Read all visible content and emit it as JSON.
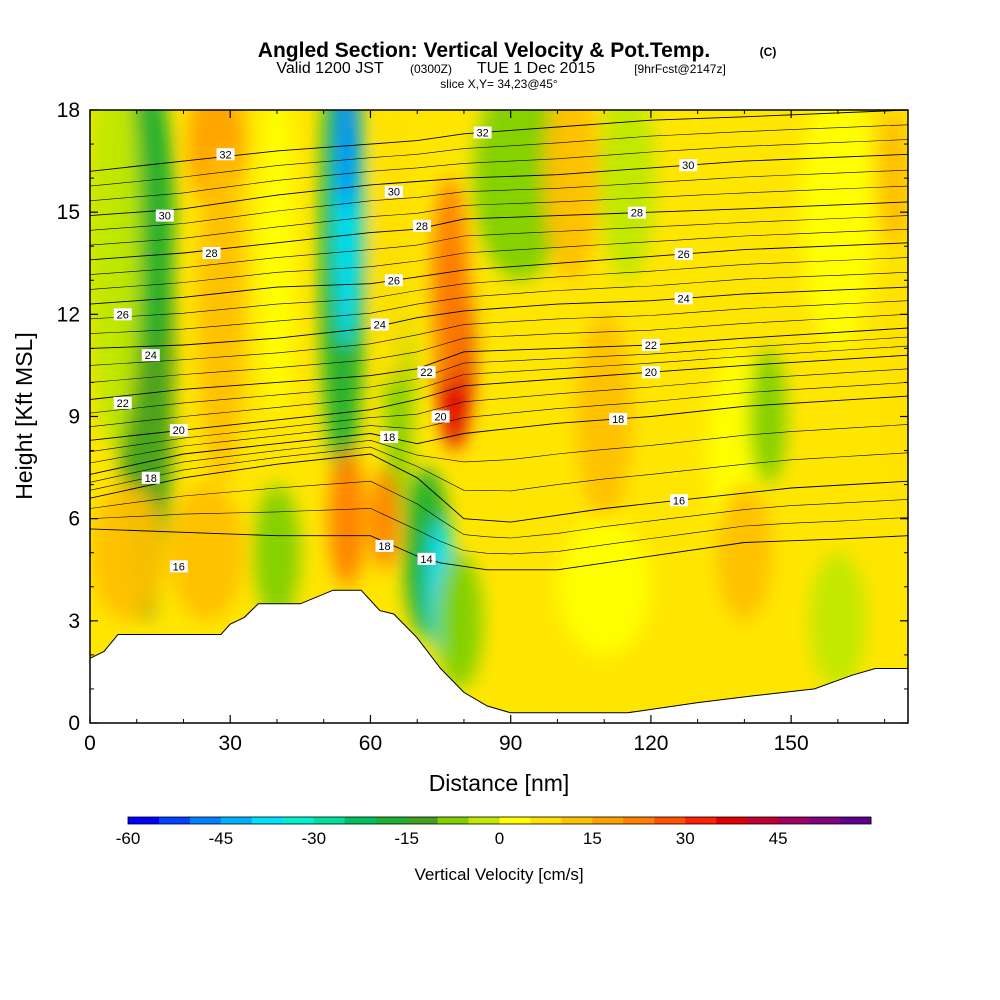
{
  "title": {
    "main": "Angled Section: Vertical Velocity & Pot.Temp.",
    "main_unit": "(C)",
    "valid_prefix": "Valid 1200 JST",
    "valid_utc": "(0300Z)",
    "valid_date": "TUE 1 Dec 2015",
    "forecast": "[9hrFcst@2147z]",
    "slice": "slice X,Y= 34,23@45°"
  },
  "chart_data": {
    "type": "heatmap",
    "description_fields": [
      "x",
      "y_levels",
      "terrain",
      "isentropes",
      "velocity_features"
    ],
    "xlabel": "Distance [nm]",
    "ylabel": "Height [Kft MSL]",
    "xlim": [
      0,
      175
    ],
    "ylim": [
      0,
      18
    ],
    "x_ticks": [
      0,
      30,
      60,
      90,
      120,
      150
    ],
    "y_ticks": [
      0,
      3,
      6,
      9,
      12,
      15,
      18
    ],
    "terrain": {
      "x": [
        0,
        3,
        6,
        12,
        20,
        28,
        30,
        33,
        36,
        45,
        52,
        58,
        60,
        62,
        65,
        70,
        75,
        80,
        85,
        90,
        100,
        115,
        130,
        142,
        155,
        163,
        168,
        175
      ],
      "y": [
        1.9,
        2.1,
        2.6,
        2.6,
        2.6,
        2.6,
        2.9,
        3.1,
        3.5,
        3.5,
        3.9,
        3.9,
        3.6,
        3.3,
        3.2,
        2.5,
        1.6,
        0.9,
        0.5,
        0.3,
        0.3,
        0.3,
        0.6,
        0.8,
        1.0,
        1.4,
        1.6,
        1.6
      ]
    },
    "isentropes": [
      {
        "theta": 14,
        "x": [
          0,
          20,
          40,
          60,
          70,
          75,
          85,
          100,
          120,
          140,
          160,
          175
        ],
        "y": [
          5.7,
          5.6,
          5.5,
          5.5,
          4.9,
          4.7,
          4.5,
          4.5,
          4.9,
          5.3,
          5.4,
          5.5
        ],
        "label_x": 72
      },
      {
        "theta": 16,
        "x": [
          0,
          20,
          40,
          60,
          70,
          80,
          90,
          110,
          130,
          150,
          175
        ],
        "y": [
          6.6,
          7.2,
          7.6,
          7.9,
          7.2,
          6.0,
          5.9,
          6.3,
          6.6,
          6.9,
          7.1
        ],
        "label_x": 126
      },
      {
        "theta": 18,
        "x": [
          0,
          20,
          40,
          60,
          70,
          80,
          100,
          120,
          140,
          175
        ],
        "y": [
          7.3,
          7.9,
          8.2,
          8.5,
          8.2,
          8.5,
          8.8,
          9.0,
          9.3,
          9.6
        ],
        "label_x": 113
      },
      {
        "theta": 20,
        "x": [
          0,
          20,
          40,
          60,
          70,
          80,
          100,
          120,
          140,
          175
        ],
        "y": [
          8.3,
          8.6,
          8.9,
          9.2,
          9.5,
          9.9,
          10.1,
          10.3,
          10.5,
          10.8
        ],
        "label_x": 120
      },
      {
        "theta": 22,
        "x": [
          0,
          20,
          40,
          60,
          70,
          80,
          100,
          120,
          140,
          175
        ],
        "y": [
          9.5,
          9.8,
          10.0,
          10.2,
          10.4,
          10.9,
          11.0,
          11.1,
          11.3,
          11.6
        ],
        "label_x": 120
      },
      {
        "theta": 24,
        "x": [
          0,
          20,
          40,
          60,
          70,
          80,
          100,
          120,
          140,
          175
        ],
        "y": [
          11.0,
          11.1,
          11.3,
          11.6,
          11.9,
          12.1,
          12.3,
          12.4,
          12.6,
          12.8
        ],
        "label_x": 127
      },
      {
        "theta": 26,
        "x": [
          0,
          20,
          40,
          60,
          70,
          80,
          100,
          120,
          140,
          175
        ],
        "y": [
          12.3,
          12.5,
          12.8,
          12.9,
          13.1,
          13.3,
          13.5,
          13.7,
          13.9,
          14.1
        ],
        "label_x": 127
      },
      {
        "theta": 28,
        "x": [
          0,
          20,
          40,
          60,
          70,
          80,
          100,
          120,
          140,
          175
        ],
        "y": [
          13.6,
          13.8,
          14.1,
          14.4,
          14.5,
          14.8,
          14.9,
          15.0,
          15.1,
          15.3
        ],
        "label_x": 117
      },
      {
        "theta": 30,
        "x": [
          0,
          20,
          40,
          60,
          70,
          80,
          100,
          120,
          140,
          175
        ],
        "y": [
          14.9,
          15.1,
          15.5,
          15.8,
          15.9,
          16.0,
          16.1,
          16.3,
          16.5,
          16.7
        ],
        "label_x": 128
      },
      {
        "theta": 32,
        "x": [
          0,
          20,
          40,
          60,
          70,
          80,
          100,
          120,
          140,
          175
        ],
        "y": [
          16.2,
          16.5,
          16.8,
          17.0,
          17.1,
          17.3,
          17.5,
          17.7,
          17.8,
          18.0
        ],
        "label_x": 84
      }
    ],
    "left_isentrope_labels": [
      {
        "theta": 16,
        "x": 19,
        "y": 4.6
      },
      {
        "theta": 18,
        "x": 13,
        "y": 7.2
      },
      {
        "theta": 20,
        "x": 19,
        "y": 8.6
      },
      {
        "theta": 22,
        "x": 7,
        "y": 9.4
      },
      {
        "theta": 24,
        "x": 13,
        "y": 10.8
      },
      {
        "theta": 26,
        "x": 7,
        "y": 12.0
      },
      {
        "theta": 28,
        "x": 26,
        "y": 13.8
      },
      {
        "theta": 30,
        "x": 16,
        "y": 14.9
      },
      {
        "theta": 32,
        "x": 29,
        "y": 16.7
      },
      {
        "theta": 30,
        "x": 65,
        "y": 15.6
      },
      {
        "theta": 28,
        "x": 71,
        "y": 14.6
      },
      {
        "theta": 26,
        "x": 65,
        "y": 13.0
      },
      {
        "theta": 24,
        "x": 62,
        "y": 11.7
      },
      {
        "theta": 22,
        "x": 72,
        "y": 10.3
      },
      {
        "theta": 20,
        "x": 75,
        "y": 9.0
      },
      {
        "theta": 18,
        "x": 64,
        "y": 8.4
      },
      {
        "theta": 18,
        "x": 63,
        "y": 5.2
      }
    ],
    "velocity_features": [
      {
        "x": 12,
        "y": 11,
        "rx": 6,
        "ry": 8,
        "w": -15
      },
      {
        "x": 13,
        "y": 15,
        "rx": 5,
        "ry": 4,
        "w": -20
      },
      {
        "x": 5,
        "y": 14,
        "rx": 6,
        "ry": 6,
        "w": -5
      },
      {
        "x": 27,
        "y": 17,
        "rx": 6,
        "ry": 2,
        "w": 18
      },
      {
        "x": 28,
        "y": 12,
        "rx": 5,
        "ry": 5,
        "w": 10
      },
      {
        "x": 40,
        "y": 14,
        "rx": 4,
        "ry": 5,
        "w": 0
      },
      {
        "x": 54,
        "y": 14,
        "rx": 5,
        "ry": 7,
        "w": -20
      },
      {
        "x": 55,
        "y": 15,
        "rx": 3,
        "ry": 4,
        "w": -38
      },
      {
        "x": 55,
        "y": 17,
        "rx": 2,
        "ry": 2,
        "w": -50
      },
      {
        "x": 66,
        "y": 10,
        "rx": 3,
        "ry": 4,
        "w": -10
      },
      {
        "x": 65,
        "y": 14,
        "rx": 4,
        "ry": 4,
        "w": 8
      },
      {
        "x": 78,
        "y": 11,
        "rx": 4,
        "ry": 3,
        "w": 35
      },
      {
        "x": 77,
        "y": 13,
        "rx": 4,
        "ry": 3,
        "w": 22
      },
      {
        "x": 92,
        "y": 16,
        "rx": 10,
        "ry": 3,
        "w": -8
      },
      {
        "x": 103,
        "y": 16,
        "rx": 6,
        "ry": 3,
        "w": 10
      },
      {
        "x": 115,
        "y": 16,
        "rx": 6,
        "ry": 3,
        "w": -5
      },
      {
        "x": 160,
        "y": 15,
        "rx": 8,
        "ry": 4,
        "w": 2
      },
      {
        "x": 172,
        "y": 16,
        "rx": 4,
        "ry": 2,
        "w": 12
      },
      {
        "x": 110,
        "y": 9,
        "rx": 6,
        "ry": 3,
        "w": 10
      },
      {
        "x": 138,
        "y": 8,
        "rx": 6,
        "ry": 3,
        "w": 2
      },
      {
        "x": 145,
        "y": 9,
        "rx": 4,
        "ry": 2,
        "w": -6
      },
      {
        "x": 8,
        "y": 5,
        "rx": 8,
        "ry": 2,
        "w": 10
      },
      {
        "x": 25,
        "y": 5,
        "rx": 8,
        "ry": 2,
        "w": 10
      },
      {
        "x": 40,
        "y": 5,
        "rx": 5,
        "ry": 2,
        "w": -8
      },
      {
        "x": 55,
        "y": 6,
        "rx": 4,
        "ry": 2,
        "w": 22
      },
      {
        "x": 63,
        "y": 6,
        "rx": 3,
        "ry": 1.5,
        "w": 22
      },
      {
        "x": 72,
        "y": 5,
        "rx": 5,
        "ry": 2.5,
        "w": -20
      },
      {
        "x": 75,
        "y": 4,
        "rx": 3,
        "ry": 2,
        "w": -38
      },
      {
        "x": 79,
        "y": 3,
        "rx": 5,
        "ry": 2,
        "w": -10
      },
      {
        "x": 140,
        "y": 5,
        "rx": 6,
        "ry": 2,
        "w": 12
      },
      {
        "x": 110,
        "y": 4,
        "rx": 10,
        "ry": 2,
        "w": 4
      },
      {
        "x": 160,
        "y": 3,
        "rx": 6,
        "ry": 2,
        "w": -5
      },
      {
        "x": 173,
        "y": 10,
        "rx": 3,
        "ry": 4,
        "w": 8
      }
    ],
    "colorbar": {
      "title": "Vertical Velocity [cm/s]",
      "levels": [
        -60,
        -55,
        -50,
        -45,
        -40,
        -35,
        -30,
        -25,
        -20,
        -15,
        -10,
        -5,
        0,
        5,
        10,
        15,
        20,
        25,
        30,
        35,
        40,
        45,
        50,
        55
      ],
      "tick_labels": [
        -60,
        -45,
        -30,
        -15,
        0,
        15,
        30,
        45
      ],
      "colors": [
        "#0000ff",
        "#0040ff",
        "#0080ff",
        "#00b0ff",
        "#00e0ff",
        "#00f0d0",
        "#00e0a0",
        "#00c060",
        "#20b030",
        "#40a020",
        "#80d000",
        "#c0e800",
        "#ffff00",
        "#ffe000",
        "#ffc000",
        "#ffa000",
        "#ff8000",
        "#ff5000",
        "#ff2000",
        "#e00000",
        "#c00030",
        "#a00060",
        "#800080",
        "#600090"
      ]
    }
  }
}
